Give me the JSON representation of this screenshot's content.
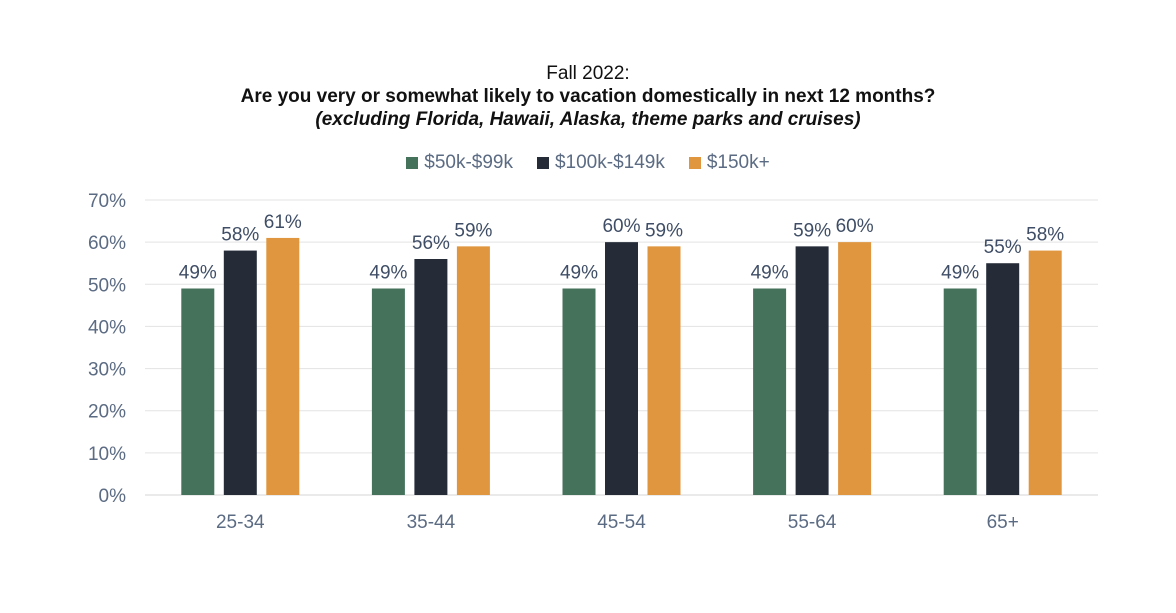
{
  "chart_data": {
    "type": "bar",
    "title_line1": "Fall 2022:",
    "title_line2": "Are you very or somewhat likely to vacation domestically in next 12 months?",
    "title_line3": "(excluding Florida, Hawaii, Alaska, theme parks and cruises)",
    "xlabel": "",
    "ylabel": "",
    "categories": [
      "25-34",
      "35-44",
      "45-54",
      "55-64",
      "65+"
    ],
    "series": [
      {
        "name": "$50k-$99k",
        "color": "#44725b",
        "values": [
          49,
          49,
          49,
          49,
          49
        ]
      },
      {
        "name": "$100k-$149k",
        "color": "#252c38",
        "values": [
          58,
          56,
          60,
          59,
          55
        ]
      },
      {
        "name": "$150k+",
        "color": "#e0963f",
        "values": [
          61,
          59,
          59,
          60,
          58
        ]
      }
    ],
    "ylim": [
      0,
      70
    ],
    "yticks": [
      0,
      10,
      20,
      30,
      40,
      50,
      60,
      70
    ],
    "ytick_labels": [
      "0%",
      "10%",
      "20%",
      "30%",
      "40%",
      "50%",
      "60%",
      "70%"
    ],
    "value_suffix": "%",
    "grid": true,
    "legend_position": "top-center"
  }
}
